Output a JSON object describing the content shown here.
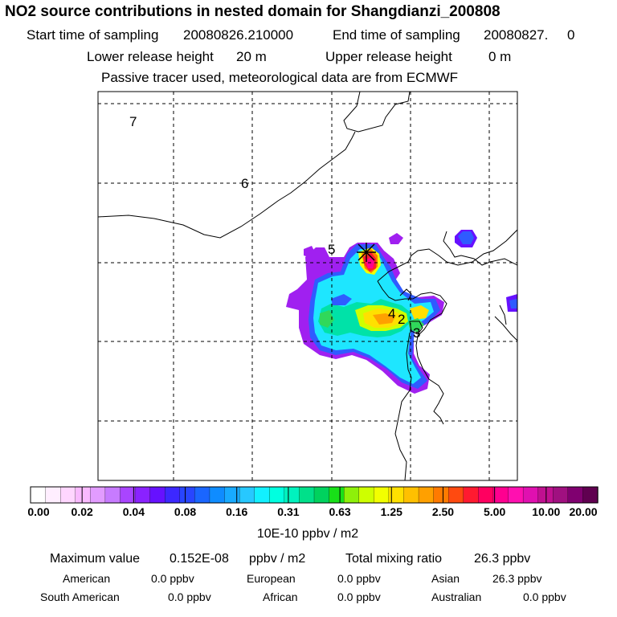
{
  "title": "NO2 source contributions in nested domain for Shangdianzi_200808",
  "sampling": {
    "start_label": "Start time of sampling",
    "start_value": "20080826.210000",
    "end_label": "End time of sampling",
    "end_value": "20080827.     0"
  },
  "release": {
    "lower_label": "Lower release height",
    "lower_value": "20 m",
    "upper_label": "Upper release height",
    "upper_value": "0 m"
  },
  "note": "Passive tracer used, meteorological data are from ECMWF",
  "map": {
    "labels": [
      "7",
      "6",
      "5",
      "4",
      "2",
      "3"
    ],
    "marker": "station-star"
  },
  "colorbar": {
    "tick_labels": [
      "0.00",
      "0.02",
      "0.04",
      "0.08",
      "0.16",
      "0.31",
      "0.63",
      "1.25",
      "2.50",
      "5.00",
      "10.00",
      "20.00"
    ],
    "unit": "10E-10 ppbv / m2",
    "colors": [
      "#ffffff",
      "#ffeeff",
      "#ffd6ff",
      "#f9baff",
      "#e29cff",
      "#c77bff",
      "#a945ff",
      "#8a22ff",
      "#6611ff",
      "#3c28ff",
      "#2845ff",
      "#1a66ff",
      "#0f8cff",
      "#18aaff",
      "#27c8ff",
      "#12f0ff",
      "#00ffe0",
      "#00f2be",
      "#00e08a",
      "#00d25e",
      "#18e018",
      "#8ef00a",
      "#ceff00",
      "#f2ff00",
      "#ffe000",
      "#ffc000",
      "#ffa000",
      "#ff7a00",
      "#ff4a10",
      "#ff1a30",
      "#ff0060",
      "#ff0090",
      "#ff10b0",
      "#e010b0",
      "#c01090",
      "#a01080",
      "#800070",
      "#600050"
    ]
  },
  "stats": {
    "max_label": "Maximum value",
    "max_value": "0.152E-08",
    "max_unit": "ppbv / m2",
    "total_label": "Total mixing ratio",
    "total_value": "26.3 ppbv",
    "regions": [
      {
        "name": "American",
        "value": "0.0 ppbv"
      },
      {
        "name": "European",
        "value": "0.0 ppbv"
      },
      {
        "name": "Asian",
        "value": "26.3 ppbv"
      },
      {
        "name": "South American",
        "value": "0.0 ppbv"
      },
      {
        "name": "African",
        "value": "0.0 ppbv"
      },
      {
        "name": "Australian",
        "value": "0.0 ppbv"
      }
    ]
  }
}
